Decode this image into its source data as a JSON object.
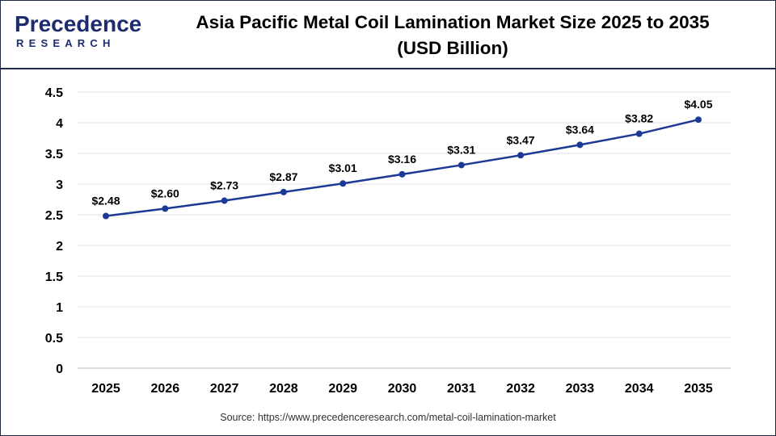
{
  "brand": {
    "logo_word": "Precedence",
    "logo_sub": "RESEARCH",
    "color": "#1c2c6e"
  },
  "header": {
    "title_line1": "Asia Pacific Metal Coil Lamination Market Size 2025 to 2035",
    "title_line2": "(USD Billion)"
  },
  "footer": {
    "source": "Source: https://www.precedenceresearch.com/metal-coil-lamination-market"
  },
  "chart_data": {
    "type": "line",
    "title": "Asia Pacific Metal Coil Lamination Market Size 2025 to 2035 (USD Billion)",
    "xlabel": "",
    "ylabel": "",
    "categories": [
      "2025",
      "2026",
      "2027",
      "2028",
      "2029",
      "2030",
      "2031",
      "2032",
      "2033",
      "2034",
      "2035"
    ],
    "series": [
      {
        "values": [
          2.48,
          2.6,
          2.73,
          2.87,
          3.01,
          3.16,
          3.31,
          3.47,
          3.64,
          3.82,
          4.05
        ],
        "labels": [
          "$2.48",
          "$2.60",
          "$2.73",
          "$2.87",
          "$3.01",
          "$3.16",
          "$3.31",
          "$3.47",
          "$3.64",
          "$3.82",
          "$4.05"
        ],
        "color": "#1c3a94"
      }
    ],
    "yticks": [
      "0",
      "0.5",
      "1",
      "1.5",
      "2",
      "2.5",
      "3",
      "3.5",
      "4",
      "4.5"
    ],
    "ylim": [
      0,
      4.5
    ],
    "grid": true,
    "legend": "none"
  }
}
